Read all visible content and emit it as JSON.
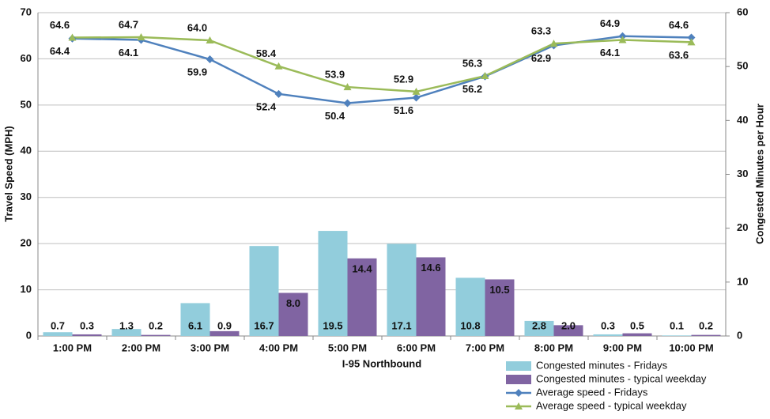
{
  "chart_data": {
    "type": "bar-line",
    "x_label": "I-95 Northbound",
    "y_label": "Travel Speed (MPH)",
    "y2_label": "Congested Minutes per Hour",
    "categories": [
      "1:00 PM",
      "2:00 PM",
      "3:00 PM",
      "4:00 PM",
      "5:00 PM",
      "6:00 PM",
      "7:00 PM",
      "8:00 PM",
      "9:00 PM",
      "10:00 PM"
    ],
    "ylim": [
      0,
      70
    ],
    "yticks": [
      0,
      10,
      20,
      30,
      40,
      50,
      60,
      70
    ],
    "y2lim": [
      0,
      60
    ],
    "y2ticks": [
      0,
      10,
      20,
      30,
      40,
      50,
      60
    ],
    "grid": true,
    "legend": "bottom-right",
    "series": [
      {
        "name": "Congested minutes - Fridays",
        "kind": "bar",
        "axis": "y2",
        "color": "#92cddc",
        "values": [
          0.7,
          1.3,
          6.1,
          16.7,
          19.5,
          17.1,
          10.8,
          2.8,
          0.3,
          0.1
        ],
        "value_labels": [
          "0.7",
          "1.3",
          "6.1",
          "16.7",
          "19.5",
          "17.1",
          "10.8",
          "2.8",
          "0.3",
          "0.1"
        ]
      },
      {
        "name": "Congested minutes - typical weekday",
        "kind": "bar",
        "axis": "y2",
        "color": "#8064a2",
        "values": [
          0.3,
          0.2,
          0.9,
          8.0,
          14.4,
          14.6,
          10.5,
          2.0,
          0.5,
          0.2
        ],
        "value_labels": [
          "0.3",
          "0.2",
          "0.9",
          "8.0",
          "14.4",
          "14.6",
          "10.5",
          "2.0",
          "0.5",
          "0.2"
        ]
      },
      {
        "name": "Average speed - Fridays",
        "kind": "line",
        "marker": "diamond",
        "color": "#4f81bd",
        "values": [
          64.4,
          64.1,
          59.9,
          52.4,
          50.4,
          51.6,
          56.2,
          62.9,
          64.9,
          64.6
        ],
        "value_labels": [
          "64.4",
          "64.1",
          "59.9",
          "52.4",
          "50.4",
          "51.6",
          "56.2",
          "62.9",
          "64.9",
          "64.6"
        ]
      },
      {
        "name": "Average speed - typical weekday",
        "kind": "line",
        "marker": "triangle",
        "color": "#9bbb59",
        "values": [
          64.6,
          64.7,
          64.0,
          58.4,
          53.9,
          52.9,
          56.3,
          63.3,
          64.1,
          63.6
        ],
        "value_labels": [
          "64.6",
          "64.7",
          "64.0",
          "58.4",
          "53.9",
          "52.9",
          "56.3",
          "63.3",
          "64.1",
          "63.6"
        ]
      }
    ]
  }
}
